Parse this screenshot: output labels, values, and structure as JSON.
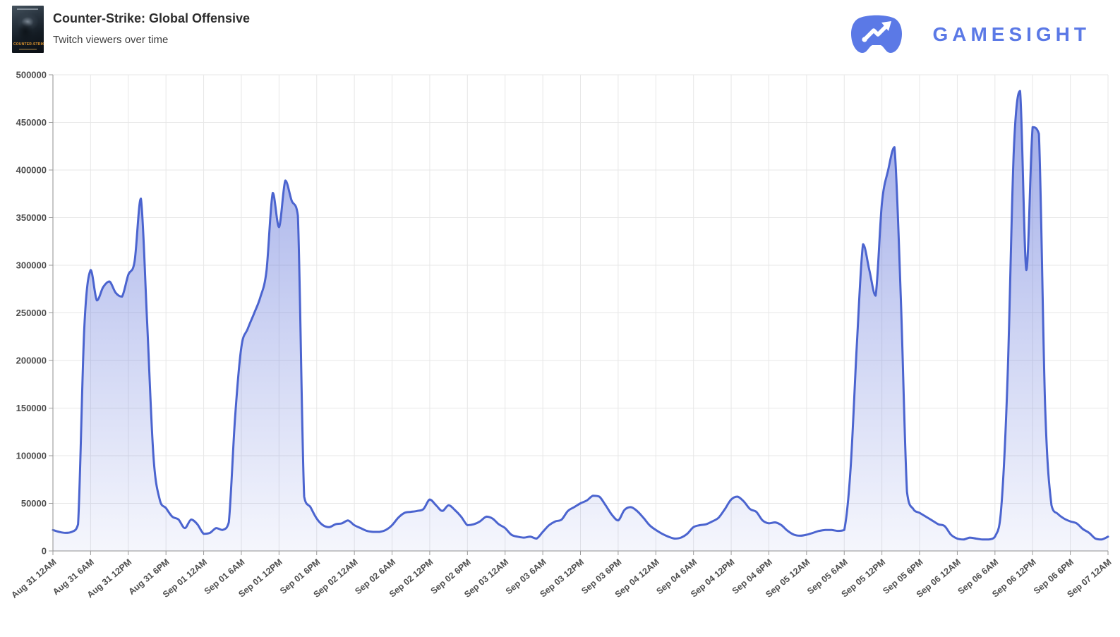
{
  "header": {
    "title": "Counter-Strike: Global Offensive",
    "subtitle": "Twitch viewers over time",
    "cover_label": "COUNTER-STRIKE"
  },
  "logo": {
    "text": "GAMESIGHT",
    "color": "#5b79e6"
  },
  "chart_data": {
    "type": "area",
    "title": "Counter-Strike: Global Offensive — Twitch viewers over time",
    "xlabel": "",
    "ylabel": "",
    "ylim": [
      0,
      500000
    ],
    "grid": true,
    "legend": "none",
    "line_color": "#4b64cf",
    "fill_color": "#5c70d8",
    "y_ticks": [
      0,
      50000,
      100000,
      150000,
      200000,
      250000,
      300000,
      350000,
      400000,
      450000,
      500000
    ],
    "x_tick_labels": [
      "Aug 31 12AM",
      "Aug 31 6AM",
      "Aug 31 12PM",
      "Aug 31 6PM",
      "Sep 01 12AM",
      "Sep 01 6AM",
      "Sep 01 12PM",
      "Sep 01 6PM",
      "Sep 02 12AM",
      "Sep 02 6AM",
      "Sep 02 12PM",
      "Sep 02 6PM",
      "Sep 03 12AM",
      "Sep 03 6AM",
      "Sep 03 12PM",
      "Sep 03 6PM",
      "Sep 04 12AM",
      "Sep 04 6AM",
      "Sep 04 12PM",
      "Sep 04 6PM",
      "Sep 05 12AM",
      "Sep 05 6AM",
      "Sep 05 12PM",
      "Sep 05 6PM",
      "Sep 06 12AM",
      "Sep 06 6AM",
      "Sep 06 12PM",
      "Sep 06 6PM",
      "Sep 07 12AM"
    ],
    "hours_per_point": 1,
    "series_name": "Twitch viewers",
    "values": [
      22000,
      20000,
      19000,
      20000,
      28000,
      235000,
      295000,
      263000,
      277000,
      283000,
      271000,
      267000,
      290000,
      304000,
      370000,
      240000,
      100000,
      54000,
      45000,
      36000,
      33000,
      24000,
      33000,
      28000,
      18000,
      19000,
      24000,
      22000,
      30000,
      140000,
      214000,
      233000,
      249000,
      266000,
      294000,
      376000,
      340000,
      389000,
      368000,
      352000,
      57000,
      46000,
      34000,
      27000,
      25000,
      28000,
      29000,
      32000,
      27000,
      24000,
      21000,
      20000,
      20000,
      22000,
      27000,
      35000,
      40000,
      41000,
      42000,
      44000,
      54000,
      48000,
      42000,
      48000,
      43000,
      36000,
      27000,
      28000,
      31000,
      36000,
      34000,
      28000,
      24000,
      17000,
      15000,
      14000,
      15000,
      13000,
      20000,
      27000,
      31000,
      33000,
      42000,
      46000,
      50000,
      53000,
      58000,
      57000,
      48000,
      38000,
      32000,
      43000,
      46000,
      42000,
      35000,
      27000,
      22000,
      18000,
      15000,
      13000,
      14000,
      18000,
      25000,
      27000,
      28000,
      31000,
      35000,
      44000,
      54000,
      57000,
      52000,
      44000,
      41000,
      32000,
      29000,
      30000,
      27000,
      21000,
      17000,
      16000,
      17000,
      19000,
      21000,
      22000,
      22000,
      21000,
      22000,
      85000,
      215000,
      322000,
      295000,
      268000,
      365000,
      400000,
      424000,
      268000,
      62000,
      44000,
      40000,
      36000,
      32000,
      28000,
      26000,
      17000,
      13000,
      12000,
      14000,
      13000,
      12000,
      12000,
      15000,
      45000,
      180000,
      420000,
      483000,
      295000,
      445000,
      438000,
      150000,
      48000,
      39000,
      34000,
      31000,
      29000,
      23000,
      19000,
      13000,
      12000,
      15000
    ]
  }
}
